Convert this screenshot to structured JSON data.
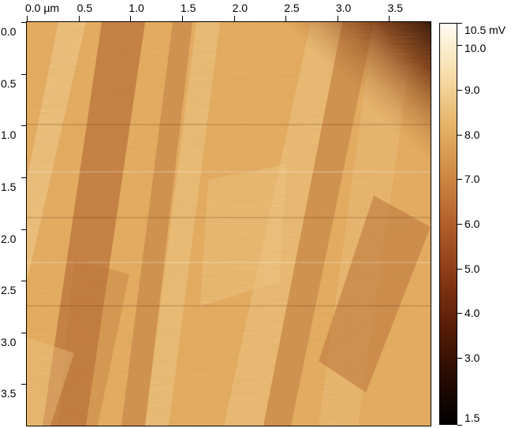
{
  "x_axis": {
    "ticks": [
      {
        "label": "0.0 µm",
        "value": 0.0
      },
      {
        "label": "0.5",
        "value": 0.5
      },
      {
        "label": "1.0",
        "value": 1.0
      },
      {
        "label": "1.5",
        "value": 1.5
      },
      {
        "label": "2.0",
        "value": 2.0
      },
      {
        "label": "2.5",
        "value": 2.5
      },
      {
        "label": "3.0",
        "value": 3.0
      },
      {
        "label": "3.5",
        "value": 3.5
      }
    ],
    "range": [
      0,
      3.9
    ]
  },
  "y_axis": {
    "ticks": [
      {
        "label": "0.0",
        "value": 0.0
      },
      {
        "label": "0.5",
        "value": 0.5
      },
      {
        "label": "1.0",
        "value": 1.0
      },
      {
        "label": "1.5",
        "value": 1.5
      },
      {
        "label": "2.0",
        "value": 2.0
      },
      {
        "label": "2.5",
        "value": 2.5
      },
      {
        "label": "3.0",
        "value": 3.0
      },
      {
        "label": "3.5",
        "value": 3.5
      }
    ],
    "range": [
      0,
      3.9
    ]
  },
  "colorbar": {
    "range": [
      1.5,
      10.5
    ],
    "ticks": [
      {
        "label": "10.5 mV",
        "value": 10.5
      },
      {
        "label": "10.0",
        "value": 10.0
      },
      {
        "label": "9.0",
        "value": 9.0
      },
      {
        "label": "8.0",
        "value": 8.0
      },
      {
        "label": "7.0",
        "value": 7.0
      },
      {
        "label": "6.0",
        "value": 6.0
      },
      {
        "label": "5.0",
        "value": 5.0
      },
      {
        "label": "4.0",
        "value": 4.0
      },
      {
        "label": "3.0",
        "value": 3.0
      },
      {
        "label": "1.5",
        "value": 1.5
      }
    ],
    "gradient": [
      "#fffbf2",
      "#f7deab",
      "#e6b469",
      "#cf8a44",
      "#b25f2b",
      "#8a3a16",
      "#5a1e08",
      "#2a0c02",
      "#000000"
    ]
  },
  "image_colors": {
    "base": "#e6ae62",
    "dark_band": "#b46a32",
    "light_band": "#f3cf8e",
    "deep_corner": "#2a0c02"
  }
}
